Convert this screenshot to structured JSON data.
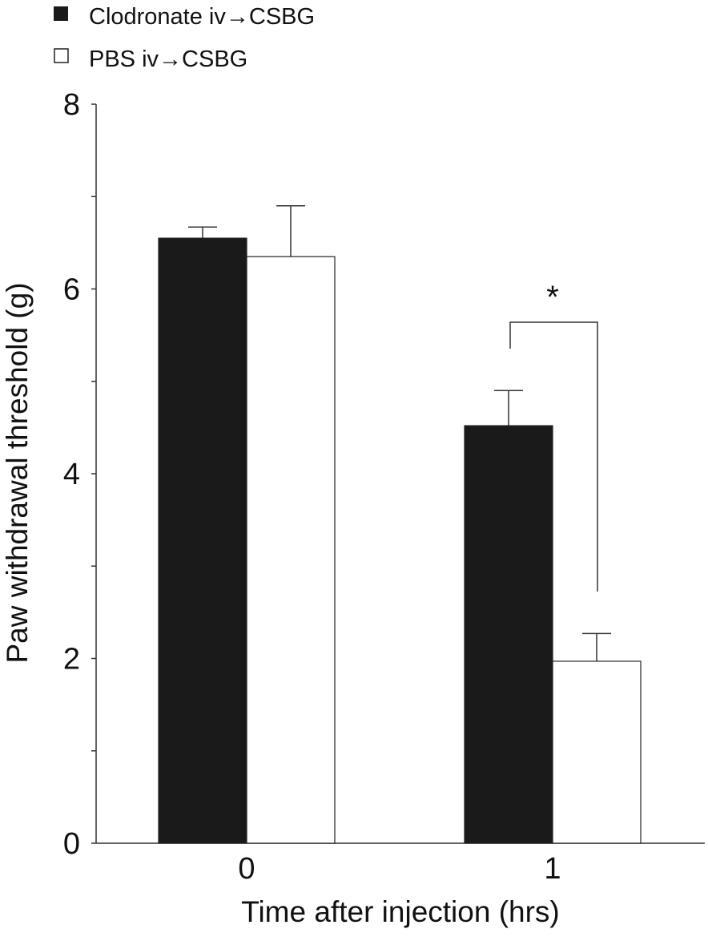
{
  "chart_data": {
    "type": "bar",
    "title": "",
    "xlabel": "Time after injection (hrs)",
    "ylabel": "Paw withdrawal threshold (g)",
    "categories": [
      "0",
      "1"
    ],
    "ylim": [
      0,
      8
    ],
    "yticks": [
      "0",
      "2",
      "4",
      "6",
      "8"
    ],
    "series": [
      {
        "name": "Clodronate iv→CSBG",
        "color": "#1a1a1a",
        "values": [
          6.55,
          4.52
        ],
        "errors": [
          0.12,
          0.38
        ]
      },
      {
        "name": "PBS iv→CSBG",
        "color": "#ffffff",
        "values": [
          6.35,
          1.97
        ],
        "errors": [
          0.55,
          0.3
        ]
      }
    ],
    "annotations": [
      {
        "text": "*",
        "category": "1"
      }
    ],
    "legend_position": "top-left",
    "grid": false
  }
}
